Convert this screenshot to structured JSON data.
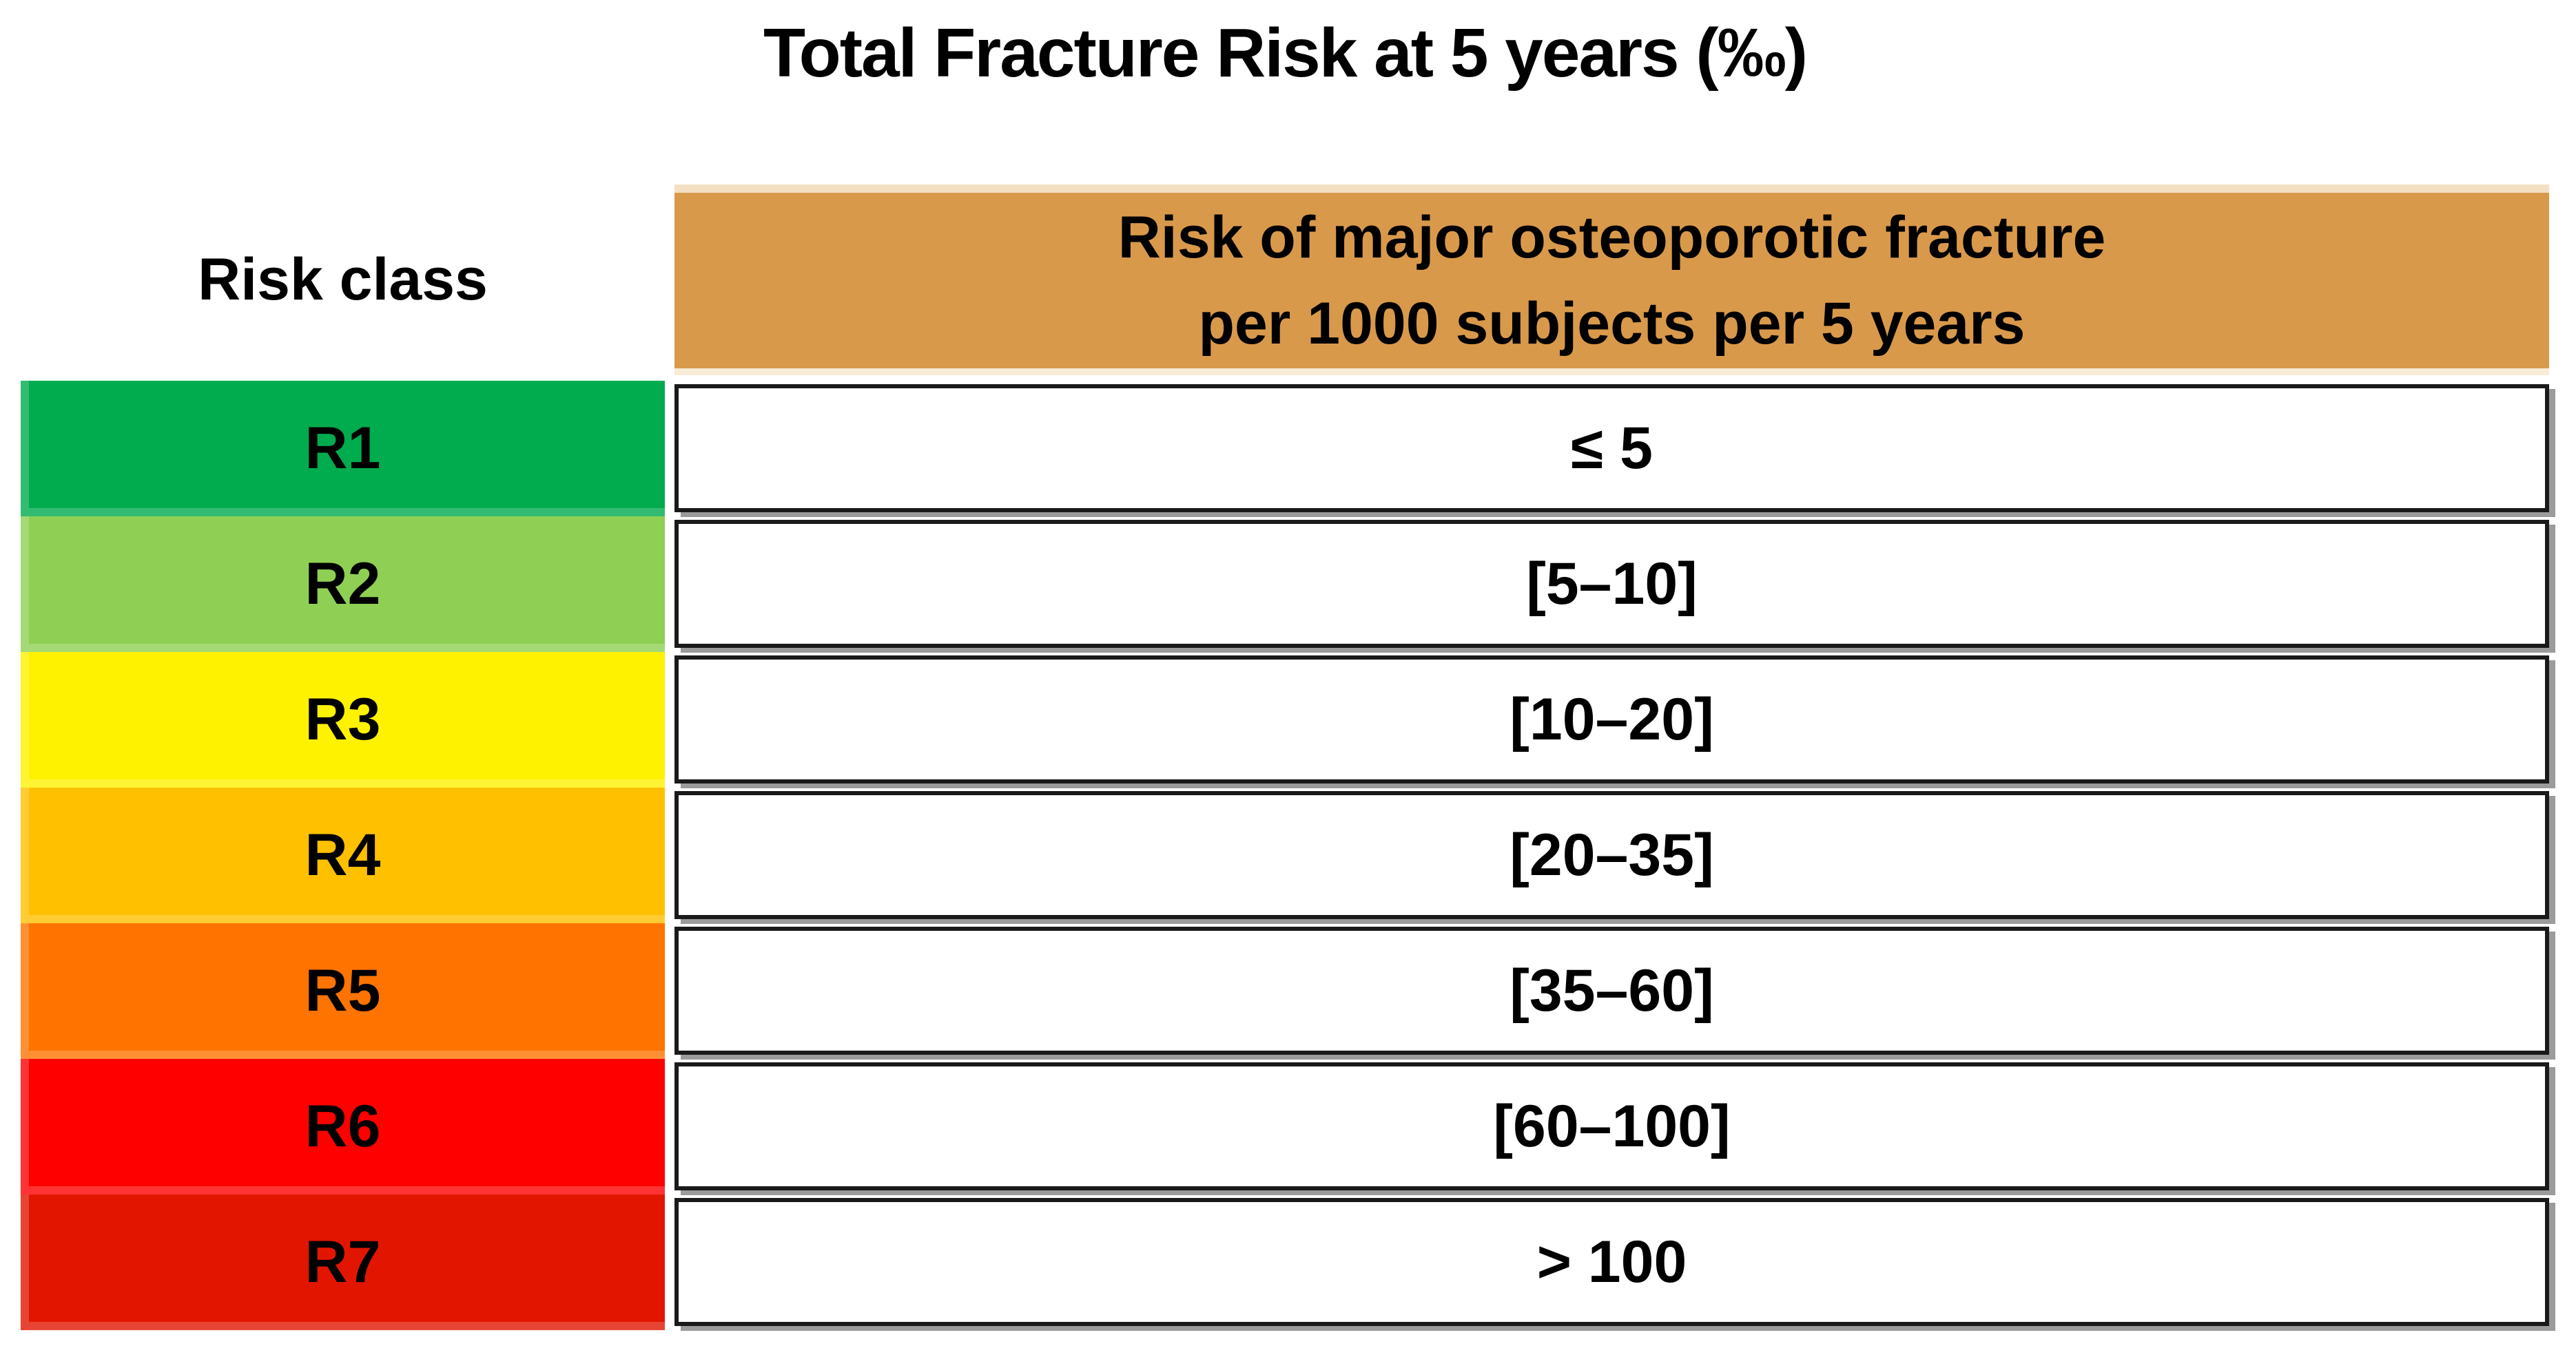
{
  "title": "Total Fracture Risk at 5 years (‰)",
  "table": {
    "left_header": "Risk class",
    "right_header_line1": "Risk of major osteoporotic fracture",
    "right_header_line2": "per 1000 subjects per 5 years",
    "header_bg": "#D9994B",
    "border_color": "#1a1a1a",
    "shadow_color": "#9b9b9b",
    "rows": [
      {
        "class": "R1",
        "range": "≤ 5",
        "color": "#00AC4E"
      },
      {
        "class": "R2",
        "range": "[5–10]",
        "color": "#8FD054"
      },
      {
        "class": "R3",
        "range": "[10–20]",
        "color": "#FFF200"
      },
      {
        "class": "R4",
        "range": "[20–35]",
        "color": "#FFC000"
      },
      {
        "class": "R5",
        "range": "[35–60]",
        "color": "#FF7300"
      },
      {
        "class": "R6",
        "range": "[60–100]",
        "color": "#FF0000"
      },
      {
        "class": "R7",
        "range": "> 100",
        "color": "#E21600"
      }
    ]
  },
  "chart_data": {
    "type": "table",
    "title": "Total Fracture Risk at 5 years (‰)",
    "columns": [
      "Risk class",
      "Risk of major osteoporotic fracture per 1000 subjects per 5 years"
    ],
    "rows": [
      [
        "R1",
        "≤ 5"
      ],
      [
        "R2",
        "[5–10]"
      ],
      [
        "R3",
        "[10–20]"
      ],
      [
        "R4",
        "[20–35]"
      ],
      [
        "R5",
        "[35–60]"
      ],
      [
        "R6",
        "[60–100]"
      ],
      [
        "R7",
        "> 100"
      ]
    ],
    "row_colors": [
      "#00AC4E",
      "#8FD054",
      "#FFF200",
      "#FFC000",
      "#FF7300",
      "#FF0000",
      "#E21600"
    ],
    "header_color": "#D9994B",
    "layout_hints": "risk classes in colored left column (green to red severity scale), values in white bordered cells with gray drop shadow"
  }
}
